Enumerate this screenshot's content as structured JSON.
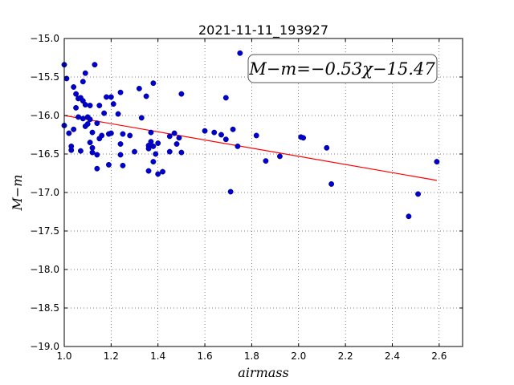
{
  "chart_data": {
    "type": "scatter",
    "title": "2021-11-11_193927",
    "xlabel": "airmass",
    "ylabel": "M−m",
    "xlim": [
      1.0,
      2.7
    ],
    "ylim": [
      -19.0,
      -15.0
    ],
    "y_inverted": false,
    "grid": true,
    "x_ticks": [
      1.0,
      1.2,
      1.4,
      1.6,
      1.8,
      2.0,
      2.2,
      2.4,
      2.6
    ],
    "y_ticks": [
      -15.0,
      -15.5,
      -16.0,
      -16.5,
      -17.0,
      -17.5,
      -18.0,
      -18.5,
      -19.0
    ],
    "x_tick_labels": [
      "1.0",
      "1.2",
      "1.4",
      "1.6",
      "1.8",
      "2.0",
      "2.2",
      "2.4",
      "2.6"
    ],
    "y_tick_labels": [
      "−15.0",
      "−15.5",
      "−16.0",
      "−16.5",
      "−17.0",
      "−17.5",
      "−18.0",
      "−18.5",
      "−19.0"
    ],
    "annotation": "M−m=−0.53χ−15.47",
    "fit": {
      "slope": -0.53,
      "intercept": -15.47,
      "x_range": [
        1.0,
        2.59
      ],
      "color": "#ff0000"
    },
    "point_color": "#0000cc",
    "points": [
      {
        "x": 1.0,
        "y": -15.34
      },
      {
        "x": 1.01,
        "y": -15.52
      },
      {
        "x": 1.0,
        "y": -16.13
      },
      {
        "x": 1.02,
        "y": -16.23
      },
      {
        "x": 1.03,
        "y": -16.45
      },
      {
        "x": 1.03,
        "y": -16.4
      },
      {
        "x": 1.04,
        "y": -16.18
      },
      {
        "x": 1.04,
        "y": -15.63
      },
      {
        "x": 1.05,
        "y": -15.72
      },
      {
        "x": 1.05,
        "y": -15.9
      },
      {
        "x": 1.06,
        "y": -15.78
      },
      {
        "x": 1.06,
        "y": -16.02
      },
      {
        "x": 1.07,
        "y": -15.77
      },
      {
        "x": 1.07,
        "y": -16.46
      },
      {
        "x": 1.08,
        "y": -15.81
      },
      {
        "x": 1.08,
        "y": -16.04
      },
      {
        "x": 1.08,
        "y": -15.56
      },
      {
        "x": 1.09,
        "y": -15.86
      },
      {
        "x": 1.09,
        "y": -15.45
      },
      {
        "x": 1.09,
        "y": -16.14
      },
      {
        "x": 1.1,
        "y": -16.02
      },
      {
        "x": 1.1,
        "y": -16.11
      },
      {
        "x": 1.11,
        "y": -16.05
      },
      {
        "x": 1.11,
        "y": -16.35
      },
      {
        "x": 1.11,
        "y": -15.87
      },
      {
        "x": 1.12,
        "y": -16.48
      },
      {
        "x": 1.12,
        "y": -16.42
      },
      {
        "x": 1.12,
        "y": -16.22
      },
      {
        "x": 1.13,
        "y": -15.34
      },
      {
        "x": 1.14,
        "y": -16.69
      },
      {
        "x": 1.14,
        "y": -16.51
      },
      {
        "x": 1.14,
        "y": -16.1
      },
      {
        "x": 1.15,
        "y": -15.87
      },
      {
        "x": 1.15,
        "y": -16.3
      },
      {
        "x": 1.16,
        "y": -16.26
      },
      {
        "x": 1.17,
        "y": -15.97
      },
      {
        "x": 1.18,
        "y": -15.76
      },
      {
        "x": 1.19,
        "y": -16.64
      },
      {
        "x": 1.19,
        "y": -16.24
      },
      {
        "x": 1.2,
        "y": -16.23
      },
      {
        "x": 1.2,
        "y": -15.76
      },
      {
        "x": 1.21,
        "y": -15.85
      },
      {
        "x": 1.23,
        "y": -15.98
      },
      {
        "x": 1.24,
        "y": -15.7
      },
      {
        "x": 1.24,
        "y": -16.37
      },
      {
        "x": 1.24,
        "y": -16.51
      },
      {
        "x": 1.25,
        "y": -16.65
      },
      {
        "x": 1.25,
        "y": -16.24
      },
      {
        "x": 1.28,
        "y": -16.26
      },
      {
        "x": 1.3,
        "y": -16.47
      },
      {
        "x": 1.32,
        "y": -15.65
      },
      {
        "x": 1.33,
        "y": -16.03
      },
      {
        "x": 1.35,
        "y": -15.75
      },
      {
        "x": 1.36,
        "y": -16.72
      },
      {
        "x": 1.36,
        "y": -16.39
      },
      {
        "x": 1.36,
        "y": -16.43
      },
      {
        "x": 1.37,
        "y": -16.22
      },
      {
        "x": 1.37,
        "y": -16.34
      },
      {
        "x": 1.38,
        "y": -15.58
      },
      {
        "x": 1.38,
        "y": -16.6
      },
      {
        "x": 1.38,
        "y": -16.4
      },
      {
        "x": 1.39,
        "y": -16.5
      },
      {
        "x": 1.4,
        "y": -16.36
      },
      {
        "x": 1.4,
        "y": -16.76
      },
      {
        "x": 1.42,
        "y": -16.73
      },
      {
        "x": 1.45,
        "y": -16.47
      },
      {
        "x": 1.45,
        "y": -16.27
      },
      {
        "x": 1.47,
        "y": -16.23
      },
      {
        "x": 1.48,
        "y": -16.37
      },
      {
        "x": 1.49,
        "y": -16.29
      },
      {
        "x": 1.5,
        "y": -16.48
      },
      {
        "x": 1.5,
        "y": -15.72
      },
      {
        "x": 1.6,
        "y": -16.2
      },
      {
        "x": 1.64,
        "y": -16.22
      },
      {
        "x": 1.67,
        "y": -16.25
      },
      {
        "x": 1.69,
        "y": -15.77
      },
      {
        "x": 1.69,
        "y": -16.31
      },
      {
        "x": 1.71,
        "y": -16.99
      },
      {
        "x": 1.72,
        "y": -16.18
      },
      {
        "x": 1.74,
        "y": -16.4
      },
      {
        "x": 1.75,
        "y": -15.19
      },
      {
        "x": 1.82,
        "y": -16.26
      },
      {
        "x": 1.86,
        "y": -16.59
      },
      {
        "x": 1.92,
        "y": -16.53
      },
      {
        "x": 2.01,
        "y": -16.28
      },
      {
        "x": 2.02,
        "y": -16.29
      },
      {
        "x": 2.12,
        "y": -16.42
      },
      {
        "x": 2.14,
        "y": -16.89
      },
      {
        "x": 2.47,
        "y": -17.31
      },
      {
        "x": 2.51,
        "y": -17.02
      },
      {
        "x": 2.59,
        "y": -16.6
      }
    ]
  }
}
